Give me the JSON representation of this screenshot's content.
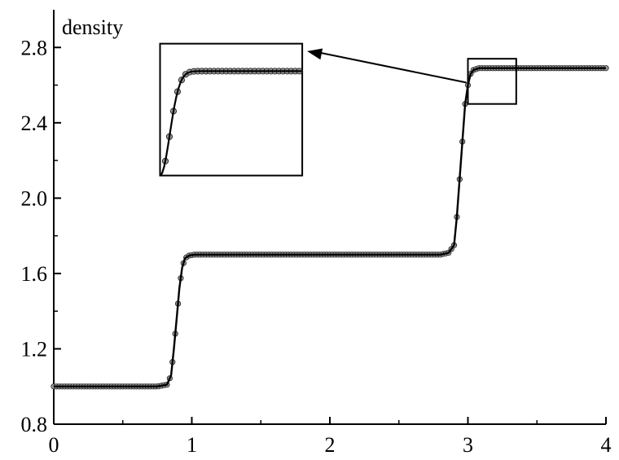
{
  "chart_data": {
    "type": "line",
    "xlabel": "",
    "ylabel": "density",
    "xlim": [
      0,
      4
    ],
    "ylim": [
      0.8,
      3.0
    ],
    "x_ticks": [
      0,
      1,
      2,
      3,
      4
    ],
    "x_tick_labels": [
      "0",
      "1",
      "2",
      "3",
      "4"
    ],
    "y_ticks": [
      0.8,
      1.2,
      1.6,
      2.0,
      2.4,
      2.8
    ],
    "y_tick_labels": [
      "0.8",
      "1.2",
      "1.6",
      "2.0",
      "2.4",
      "2.8"
    ],
    "grid": false,
    "legend": "none",
    "colors": {
      "line": "#000000",
      "marker": "#777777"
    },
    "series": [
      {
        "style": "solid-line-with-ball-markers",
        "x": [
          0.0,
          0.75,
          0.82,
          0.85,
          0.87,
          0.89,
          0.91,
          0.93,
          0.95,
          0.98,
          1.02,
          1.1,
          1.5,
          2.0,
          2.5,
          2.8,
          2.86,
          2.9,
          2.92,
          2.94,
          2.96,
          2.98,
          3.0,
          3.02,
          3.04,
          3.08,
          3.15,
          3.5,
          4.0
        ],
        "y": [
          1.0,
          1.0,
          1.01,
          1.06,
          1.2,
          1.36,
          1.52,
          1.63,
          1.68,
          1.695,
          1.7,
          1.7,
          1.7,
          1.7,
          1.7,
          1.7,
          1.71,
          1.75,
          1.9,
          2.1,
          2.3,
          2.5,
          2.6,
          2.66,
          2.68,
          2.69,
          2.69,
          2.69,
          2.69
        ]
      }
    ],
    "annotations": {
      "zoom_box": {
        "x": [
          3.0,
          3.35
        ],
        "y": [
          2.5,
          2.74
        ]
      },
      "inset": {
        "x": [
          0.77,
          1.8
        ],
        "y": [
          2.12,
          2.82
        ],
        "content": "magnified view of zoom_box"
      },
      "arrow": {
        "from": "zoom_box",
        "to": "inset"
      }
    }
  }
}
